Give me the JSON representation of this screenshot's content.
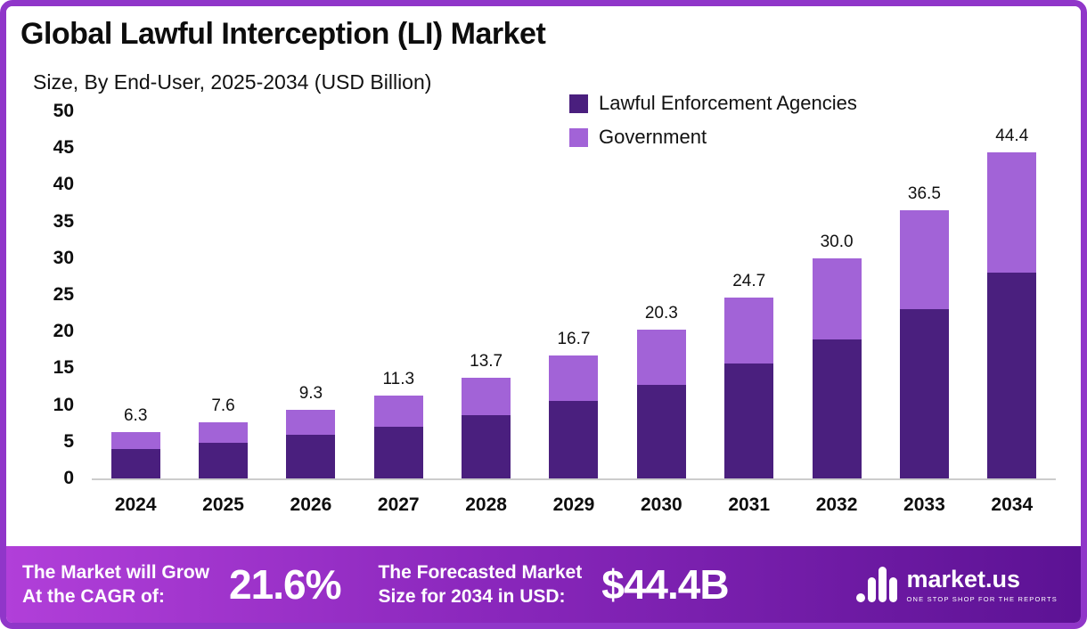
{
  "title": "Global Lawful Interception (LI) Market",
  "subtitle": "Size, By End-User, 2025-2034 (USD Billion)",
  "legend": [
    {
      "label": "Lawful Enforcement Agencies",
      "color": "#4a1f7e"
    },
    {
      "label": "Government",
      "color": "#a263d7"
    }
  ],
  "chart_data": {
    "type": "bar",
    "stacked": true,
    "title": "Global Lawful Interception (LI) Market Size, By End-User, 2025-2034 (USD Billion)",
    "categories": [
      "2024",
      "2025",
      "2026",
      "2027",
      "2028",
      "2029",
      "2030",
      "2031",
      "2032",
      "2033",
      "2034"
    ],
    "series": [
      {
        "name": "Lawful Enforcement Agencies",
        "color": "#4a1f7e",
        "values": [
          4.0,
          4.8,
          5.9,
          7.1,
          8.6,
          10.5,
          12.8,
          15.6,
          18.9,
          23.0,
          28.0
        ]
      },
      {
        "name": "Government",
        "color": "#a263d7",
        "values": [
          2.3,
          2.8,
          3.4,
          4.2,
          5.1,
          6.2,
          7.5,
          9.1,
          11.1,
          13.5,
          16.4
        ]
      }
    ],
    "totals_labels": [
      "6.3",
      "7.6",
      "9.3",
      "11.3",
      "13.7",
      "16.7",
      "20.3",
      "24.7",
      "30.0",
      "36.5",
      "44.4"
    ],
    "xlabel": "",
    "ylabel": "",
    "ylim": [
      0,
      50
    ],
    "ytick_step": 5,
    "grid": false,
    "legend_position": "top-right"
  },
  "footer": {
    "cagr_label_1": "The Market will Grow",
    "cagr_label_2": "At the CAGR of:",
    "cagr_value": "21.6%",
    "forecast_label_1": "The Forecasted Market",
    "forecast_label_2": "Size for 2034 in USD:",
    "forecast_value": "$44.4B",
    "brand": "market.us",
    "brand_tagline": "ONE STOP SHOP FOR THE REPORTS"
  },
  "colors": {
    "border": "#9036c9",
    "footer_gradient_start": "#b13fd9",
    "footer_gradient_end": "#5c1294",
    "dark_series": "#4a1f7e",
    "light_series": "#a263d7"
  }
}
